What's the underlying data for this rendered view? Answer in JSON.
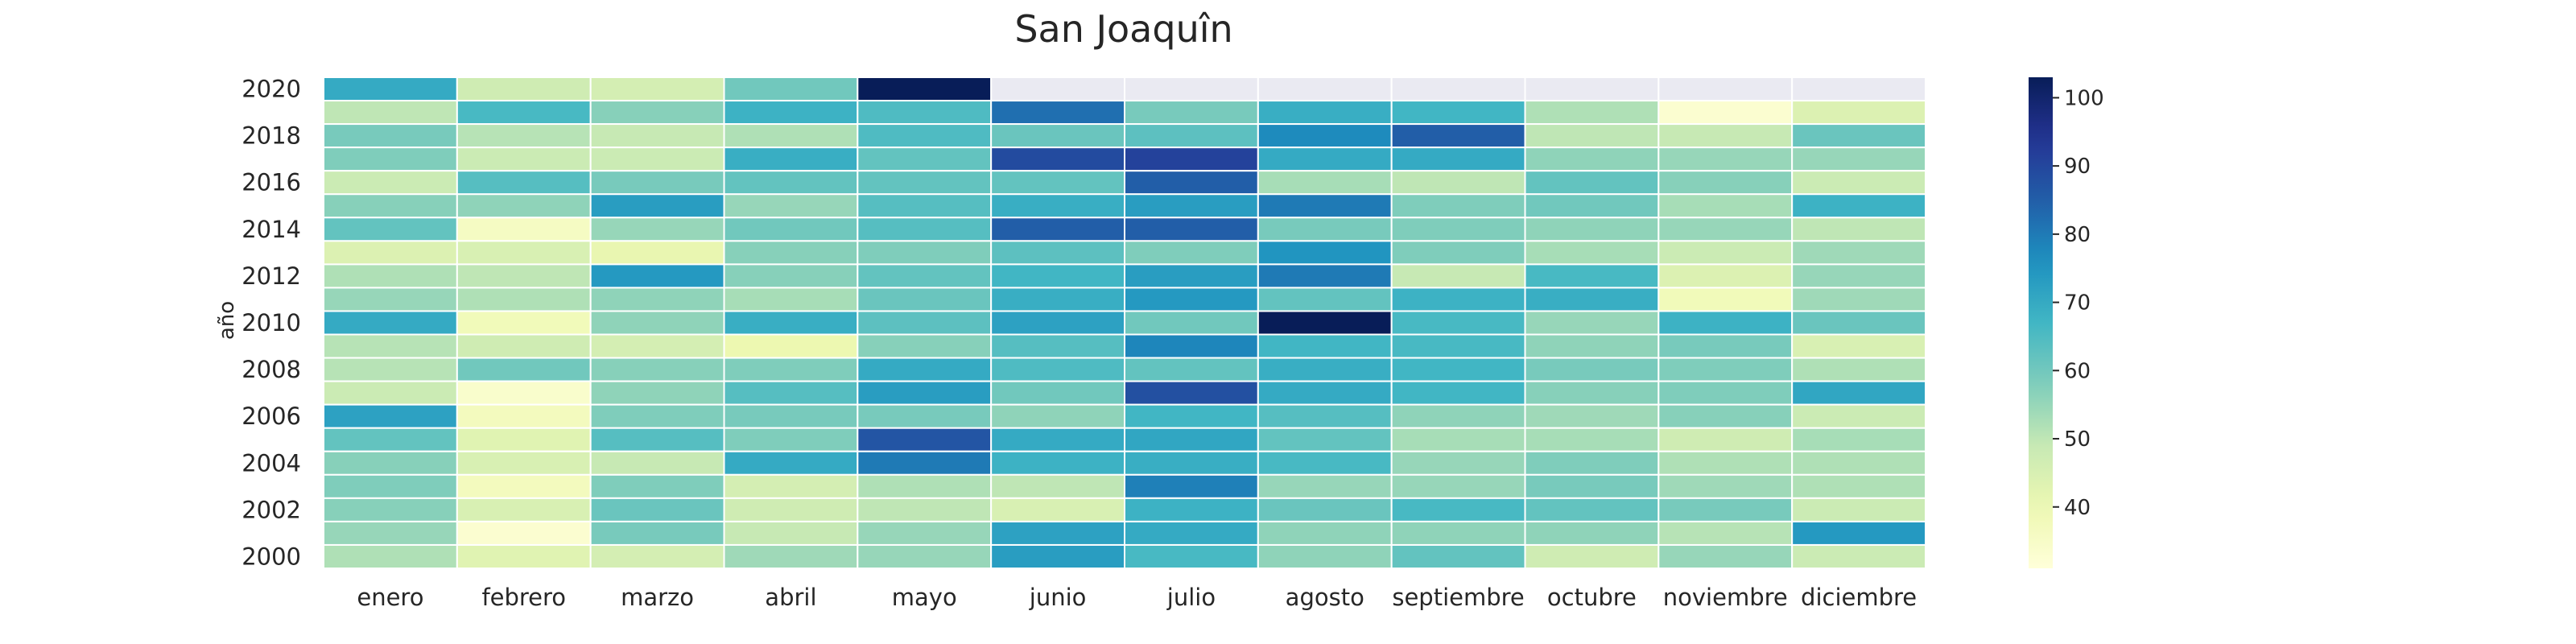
{
  "chart_data": {
    "type": "heatmap",
    "title": "San Joaquîn",
    "ylabel": "año",
    "xlabel": "",
    "x_categories": [
      "enero",
      "febrero",
      "marzo",
      "abril",
      "mayo",
      "junio",
      "julio",
      "agosto",
      "septiembre",
      "octubre",
      "noviembre",
      "diciembre"
    ],
    "y_rows": [
      "2020",
      "2019",
      "2018",
      "2017",
      "2016",
      "2015",
      "2014",
      "2013",
      "2012",
      "2011",
      "2010",
      "2009",
      "2008",
      "2007",
      "2006",
      "2005",
      "2004",
      "2003",
      "2002",
      "2001",
      "2000"
    ],
    "y_tick_labels": [
      "2020",
      "2018",
      "2016",
      "2014",
      "2012",
      "2010",
      "2008",
      "2006",
      "2004",
      "2002",
      "2000"
    ],
    "missing_color": "#eaeaf2",
    "colormap": "YlGnBu",
    "colorbar": {
      "range": [
        31,
        103
      ],
      "ticks": [
        40,
        50,
        60,
        70,
        80,
        90,
        100
      ]
    },
    "values": [
      [
        70,
        47,
        46,
        60,
        103,
        null,
        null,
        null,
        null,
        null,
        null,
        null
      ],
      [
        50,
        66,
        57,
        68,
        65,
        82,
        59,
        69,
        67,
        52,
        33,
        44
      ],
      [
        59,
        51,
        49,
        52,
        65,
        61,
        63,
        77,
        85,
        50,
        49,
        61
      ],
      [
        58,
        48,
        48,
        69,
        62,
        89,
        91,
        70,
        70,
        56,
        55,
        55
      ],
      [
        48,
        64,
        59,
        62,
        62,
        62,
        85,
        53,
        50,
        62,
        57,
        48
      ],
      [
        57,
        56,
        73,
        55,
        64,
        69,
        73,
        80,
        58,
        60,
        53,
        68
      ],
      [
        62,
        36,
        55,
        60,
        64,
        85,
        85,
        59,
        58,
        56,
        55,
        50
      ],
      [
        44,
        45,
        41,
        57,
        58,
        63,
        58,
        75,
        58,
        53,
        48,
        54
      ],
      [
        52,
        50,
        74,
        57,
        62,
        67,
        73,
        80,
        49,
        66,
        44,
        55
      ],
      [
        55,
        52,
        56,
        53,
        61,
        69,
        74,
        62,
        68,
        69,
        38,
        54
      ],
      [
        70,
        38,
        56,
        69,
        63,
        72,
        60,
        104,
        66,
        55,
        68,
        61
      ],
      [
        51,
        47,
        46,
        40,
        57,
        64,
        78,
        67,
        66,
        56,
        59,
        45
      ],
      [
        51,
        60,
        57,
        58,
        70,
        65,
        62,
        69,
        67,
        59,
        58,
        52
      ],
      [
        48,
        34,
        56,
        64,
        73,
        60,
        88,
        70,
        67,
        57,
        58,
        71
      ],
      [
        72,
        37,
        58,
        59,
        59,
        56,
        67,
        64,
        56,
        54,
        57,
        48
      ],
      [
        62,
        43,
        64,
        58,
        87,
        70,
        71,
        62,
        53,
        53,
        47,
        53
      ],
      [
        57,
        45,
        49,
        70,
        80,
        68,
        69,
        66,
        55,
        58,
        52,
        52
      ],
      [
        58,
        37,
        58,
        46,
        52,
        50,
        79,
        55,
        55,
        59,
        54,
        52
      ],
      [
        57,
        45,
        61,
        47,
        50,
        45,
        68,
        61,
        66,
        62,
        59,
        48
      ],
      [
        55,
        33,
        59,
        49,
        55,
        72,
        70,
        56,
        56,
        56,
        51,
        74
      ],
      [
        52,
        43,
        46,
        54,
        55,
        73,
        66,
        56,
        62,
        47,
        55,
        48
      ]
    ]
  }
}
